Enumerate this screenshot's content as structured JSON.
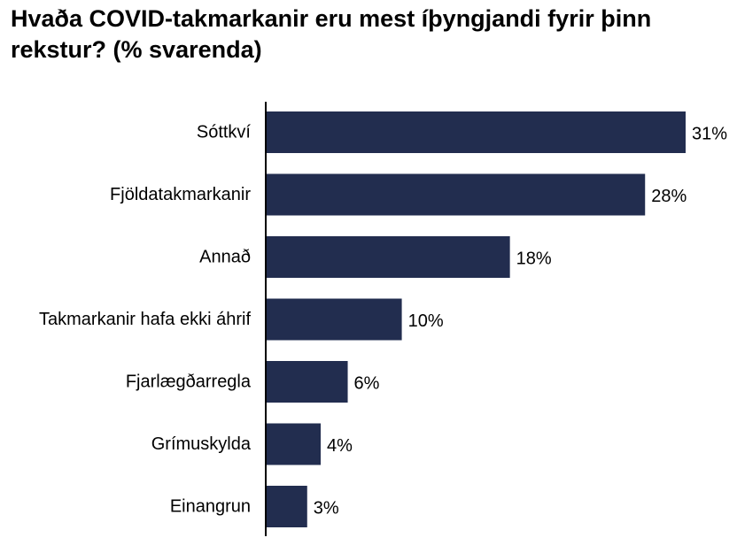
{
  "chart_data": {
    "type": "bar",
    "orientation": "horizontal",
    "title": "Hvaða COVID-takmarkanir eru mest íþyngjandi fyrir þinn rekstur? (% svarenda)",
    "categories": [
      "Sóttkví",
      "Fjöldatakmarkanir",
      "Annað",
      "Takmarkanir hafa ekki áhrif",
      "Fjarlægðarregla",
      "Grímuskylda",
      "Einangrun"
    ],
    "values": [
      31,
      28,
      18,
      10,
      6,
      4,
      3
    ],
    "value_labels": [
      "31%",
      "28%",
      "18%",
      "10%",
      "6%",
      "4%",
      "3%"
    ],
    "unit": "%",
    "xlim": [
      0,
      31
    ],
    "grid": false,
    "legend": "none",
    "bar_color": "#222d4f"
  }
}
